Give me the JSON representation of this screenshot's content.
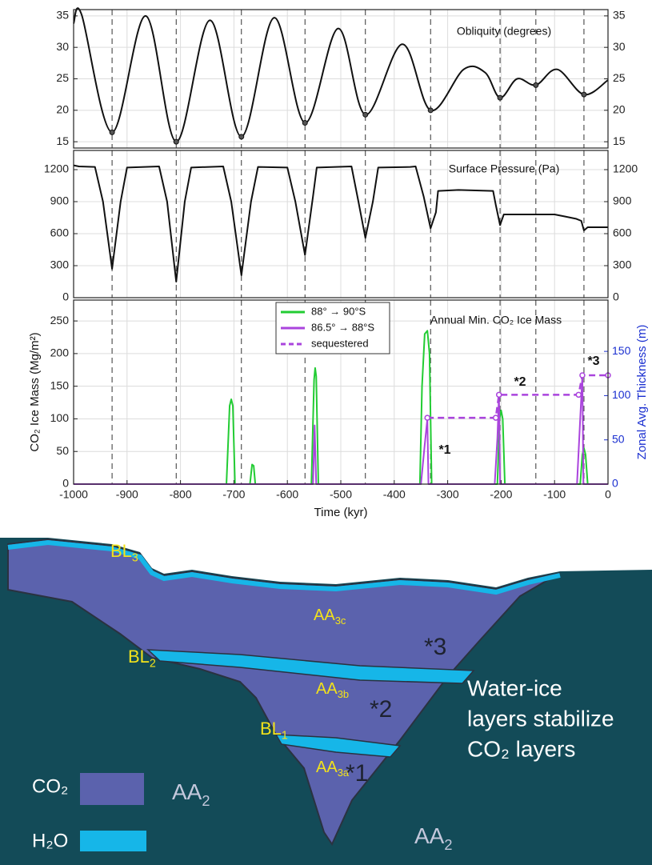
{
  "chart_data": [
    {
      "type": "line",
      "title": "Obliquity (degrees)",
      "smooth": true,
      "ylim": [
        14,
        36
      ],
      "yticks": [
        15,
        20,
        25,
        30,
        35
      ],
      "grid": true,
      "series": [
        {
          "color": "#111111",
          "x": [
            -1000,
            -985,
            -928,
            -865,
            -808,
            -745,
            -686,
            -625,
            -567,
            -505,
            -454,
            -385,
            -332,
            -270,
            -230,
            -202,
            -170,
            -135,
            -95,
            -45,
            0
          ],
          "values": [
            33.8,
            35.2,
            16.5,
            35,
            15,
            34.3,
            15.8,
            34.7,
            18,
            33,
            19.3,
            30.5,
            20,
            26.5,
            26,
            22,
            25,
            24,
            26.5,
            22.5,
            24.8
          ]
        }
      ],
      "markers": {
        "x": [
          -928,
          -808,
          -686,
          -567,
          -454,
          -332,
          -202,
          -135,
          -45
        ],
        "values": [
          16.5,
          15,
          15.8,
          18,
          19.3,
          20,
          22,
          24,
          22.5
        ]
      }
    },
    {
      "type": "line",
      "title": "Surface Pressure (Pa)",
      "ylim": [
        0,
        1380
      ],
      "yticks": [
        0,
        300,
        600,
        900,
        1200
      ],
      "grid": true,
      "series": [
        {
          "color": "#111111",
          "x": [
            -1000,
            -990,
            -960,
            -945,
            -928,
            -912,
            -900,
            -840,
            -825,
            -808,
            -792,
            -780,
            -720,
            -705,
            -686,
            -668,
            -655,
            -600,
            -585,
            -567,
            -552,
            -545,
            -480,
            -467,
            -454,
            -440,
            -430,
            -370,
            -360,
            -345,
            -332,
            -322,
            -318,
            -280,
            -215,
            -210,
            -202,
            -195,
            -150,
            -100,
            -80,
            -60,
            -50,
            -45,
            -38,
            0
          ],
          "values": [
            1240,
            1230,
            1225,
            900,
            270,
            900,
            1220,
            1230,
            900,
            150,
            900,
            1220,
            1230,
            900,
            210,
            900,
            1225,
            1220,
            900,
            400,
            950,
            1220,
            1230,
            900,
            560,
            900,
            1220,
            1225,
            1230,
            950,
            650,
            800,
            1000,
            1010,
            1000,
            870,
            680,
            780,
            780,
            780,
            760,
            740,
            720,
            630,
            660,
            660
          ]
        }
      ]
    },
    {
      "type": "line",
      "title": "Annual Min. CO₂ Ice Mass",
      "ylabel": "CO₂ Ice Mass (Mg/m²)",
      "y2label": "Zonal Avg. Thickness (m)",
      "xlabel": "Time (kyr)",
      "xlim": [
        -1000,
        0
      ],
      "xticks": [
        -1000,
        -900,
        -800,
        -700,
        -600,
        -500,
        -400,
        -300,
        -200,
        -100,
        0
      ],
      "ylim": [
        0,
        282
      ],
      "yticks": [
        0,
        50,
        100,
        150,
        200,
        250
      ],
      "y2lim": [
        0,
        208
      ],
      "y2ticks": [
        0,
        50,
        100,
        150
      ],
      "y2color": "#1a2fd0",
      "grid": true,
      "series": [
        {
          "name": "88° → 90°S",
          "color": "#22cc33",
          "x": [
            -1000,
            -714,
            -708,
            -705,
            -702,
            -698,
            -670,
            -666,
            -663,
            -660,
            -555,
            -550,
            -548,
            -546,
            -542,
            -352,
            -348,
            -343,
            -338,
            -334,
            -330,
            -207,
            -203,
            -200,
            -197,
            -193,
            -52,
            -48,
            -45,
            -42,
            -38,
            0
          ],
          "values": [
            0,
            0,
            120,
            130,
            120,
            0,
            0,
            30,
            28,
            0,
            0,
            160,
            178,
            165,
            0,
            0,
            150,
            230,
            235,
            200,
            0,
            0,
            100,
            113,
            100,
            0,
            0,
            45,
            55,
            45,
            0,
            0
          ]
        },
        {
          "name": "86.5° → 88°S",
          "color": "#aa44dd",
          "x": [
            -1000,
            -552,
            -549,
            -546,
            -350,
            -343,
            -338,
            -336,
            -212,
            -207,
            -204,
            -202,
            -58,
            -52,
            -48,
            -46,
            0
          ],
          "values": [
            0,
            0,
            90,
            0,
            0,
            60,
            100,
            0,
            0,
            70,
            137,
            0,
            0,
            100,
            166,
            0,
            0
          ]
        },
        {
          "name": "sequestered",
          "color": "#aa44dd",
          "dash": true,
          "axis": "y2",
          "points": true,
          "x": [
            -338,
            -210,
            -204,
            -55,
            -48,
            0
          ],
          "values": [
            75,
            75,
            101,
            101,
            123,
            123
          ]
        }
      ],
      "annotations": [
        "*1",
        "*2",
        "*3"
      ]
    }
  ],
  "diagram": {
    "labels": [
      {
        "main": "BL",
        "sub": "3"
      },
      {
        "main": "AA",
        "sub": "3c"
      },
      {
        "main": "BL",
        "sub": "2"
      },
      {
        "main": "AA",
        "sub": "3b"
      },
      {
        "main": "BL",
        "sub": "1"
      },
      {
        "main": "AA",
        "sub": "3a"
      },
      {
        "main": "AA",
        "sub": "2"
      },
      {
        "main": "AA",
        "sub": "2"
      }
    ],
    "stars": [
      "*3",
      "*2",
      "*1"
    ],
    "note": [
      "Water-ice",
      "layers stabilize",
      "CO₂ layers"
    ],
    "legend": [
      "CO₂",
      "H₂O"
    ]
  }
}
